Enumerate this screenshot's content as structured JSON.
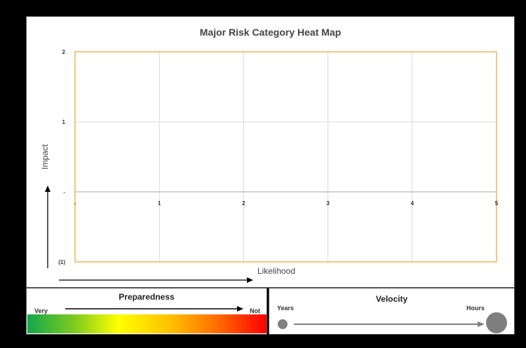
{
  "chart_data": {
    "type": "scatter",
    "title": "Major Risk Category Heat Map",
    "xlabel": "Likelihood",
    "ylabel": "Impact",
    "xlim": [
      0,
      5
    ],
    "ylim": [
      -1,
      2
    ],
    "x_ticks": [
      {
        "value": 0,
        "label": "-"
      },
      {
        "value": 1,
        "label": "1"
      },
      {
        "value": 2,
        "label": "2"
      },
      {
        "value": 3,
        "label": "3"
      },
      {
        "value": 4,
        "label": "4"
      },
      {
        "value": 5,
        "label": "5"
      }
    ],
    "y_ticks": [
      {
        "value": 2,
        "label": "2"
      },
      {
        "value": 1,
        "label": "1"
      },
      {
        "value": 0,
        "label": "-"
      },
      {
        "value": -1,
        "label": "(1)"
      }
    ],
    "grid": true,
    "border_color": "#f0a030",
    "series": []
  },
  "preparedness": {
    "title": "Preparedness",
    "left_label": "Very",
    "right_label": "Not"
  },
  "velocity": {
    "title": "Velocity",
    "left_label": "Years",
    "right_label": "Hours"
  }
}
